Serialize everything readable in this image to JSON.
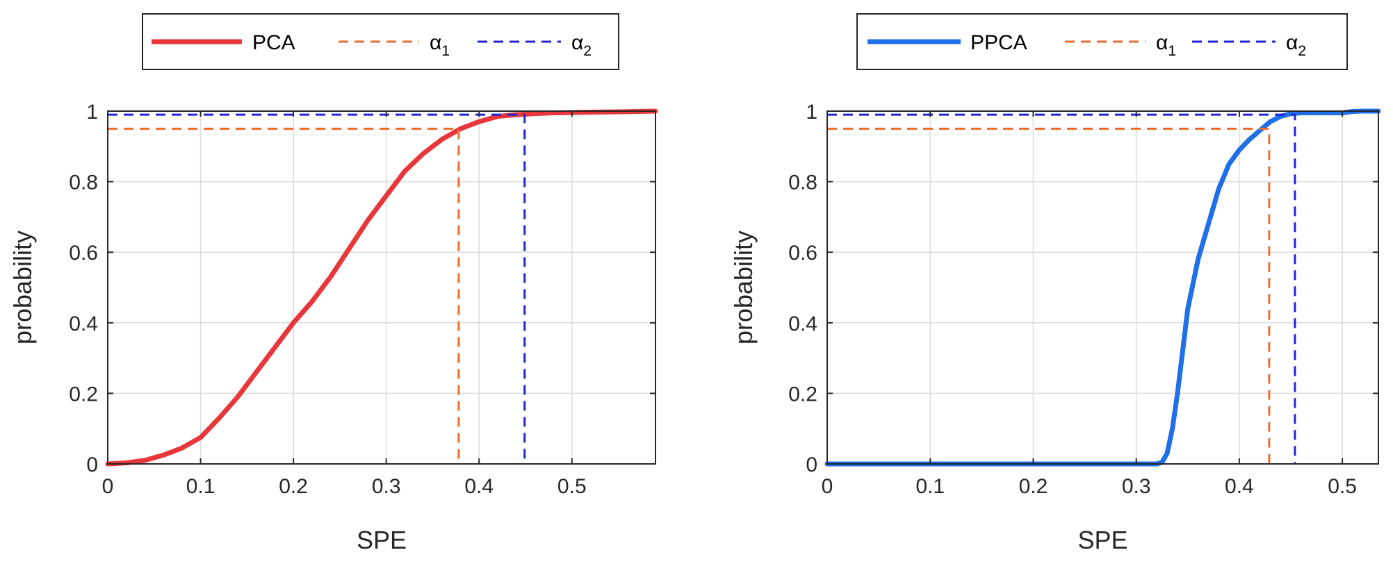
{
  "chart_data": [
    {
      "type": "line",
      "xlabel": "SPE",
      "ylabel": "probability",
      "xlim": [
        0,
        0.59
      ],
      "ylim": [
        0,
        1
      ],
      "xticks": [
        "0",
        "0.1",
        "0.2",
        "0.3",
        "0.4",
        "0.5"
      ],
      "yticks": [
        "0",
        "0.2",
        "0.4",
        "0.6",
        "0.8",
        "1"
      ],
      "grid": true,
      "legend_placement": "top",
      "series": [
        {
          "name": "PCA",
          "style": "solid",
          "color": "#e8373a",
          "x": [
            0,
            0.02,
            0.04,
            0.06,
            0.08,
            0.1,
            0.12,
            0.14,
            0.16,
            0.18,
            0.2,
            0.22,
            0.24,
            0.26,
            0.28,
            0.3,
            0.32,
            0.34,
            0.36,
            0.38,
            0.4,
            0.42,
            0.44,
            0.46,
            0.48,
            0.5,
            0.52,
            0.55,
            0.59
          ],
          "y": [
            0,
            0.003,
            0.01,
            0.025,
            0.045,
            0.075,
            0.13,
            0.19,
            0.26,
            0.33,
            0.4,
            0.46,
            0.53,
            0.61,
            0.69,
            0.76,
            0.83,
            0.88,
            0.92,
            0.95,
            0.97,
            0.985,
            0.99,
            0.993,
            0.995,
            0.996,
            0.997,
            0.998,
            1.0
          ]
        },
        {
          "name": "α₁",
          "style": "dashed",
          "color": "#f26b2a",
          "x": [
            0,
            0.378,
            0.378
          ],
          "y": [
            0.95,
            0.95,
            0
          ]
        },
        {
          "name": "α₂",
          "style": "dashed",
          "color": "#2323d6",
          "x": [
            0,
            0.449,
            0.449
          ],
          "y": [
            0.99,
            0.99,
            0
          ]
        }
      ],
      "legend": [
        {
          "label": "PCA",
          "sub": ""
        },
        {
          "label": "α",
          "sub": "1"
        },
        {
          "label": "α",
          "sub": "2"
        }
      ]
    },
    {
      "type": "line",
      "xlabel": "SPE",
      "ylabel": "probability",
      "xlim": [
        0,
        0.535
      ],
      "ylim": [
        0,
        1
      ],
      "xticks": [
        "0",
        "0.1",
        "0.2",
        "0.3",
        "0.4",
        "0.5"
      ],
      "yticks": [
        "0",
        "0.2",
        "0.4",
        "0.6",
        "0.8",
        "1"
      ],
      "grid": true,
      "legend_placement": "top",
      "series": [
        {
          "name": "PPCA",
          "style": "solid",
          "color": "#1f6fe8",
          "x": [
            0,
            0.1,
            0.2,
            0.3,
            0.32,
            0.325,
            0.33,
            0.335,
            0.34,
            0.345,
            0.35,
            0.36,
            0.37,
            0.38,
            0.39,
            0.4,
            0.41,
            0.42,
            0.43,
            0.44,
            0.45,
            0.46,
            0.48,
            0.5,
            0.51,
            0.52,
            0.535
          ],
          "y": [
            0,
            0,
            0,
            0,
            0,
            0.005,
            0.03,
            0.1,
            0.2,
            0.32,
            0.44,
            0.58,
            0.68,
            0.78,
            0.85,
            0.89,
            0.92,
            0.945,
            0.97,
            0.985,
            0.993,
            0.995,
            0.995,
            0.995,
            0.999,
            1.0,
            1.0
          ]
        },
        {
          "name": "α₁",
          "style": "dashed",
          "color": "#f26b2a",
          "x": [
            0,
            0.429,
            0.429
          ],
          "y": [
            0.95,
            0.95,
            0
          ]
        },
        {
          "name": "α₂",
          "style": "dashed",
          "color": "#2323d6",
          "x": [
            0,
            0.454,
            0.454
          ],
          "y": [
            0.99,
            0.99,
            0
          ]
        }
      ],
      "legend": [
        {
          "label": "PPCA",
          "sub": ""
        },
        {
          "label": "α",
          "sub": "1"
        },
        {
          "label": "α",
          "sub": "2"
        }
      ]
    }
  ]
}
